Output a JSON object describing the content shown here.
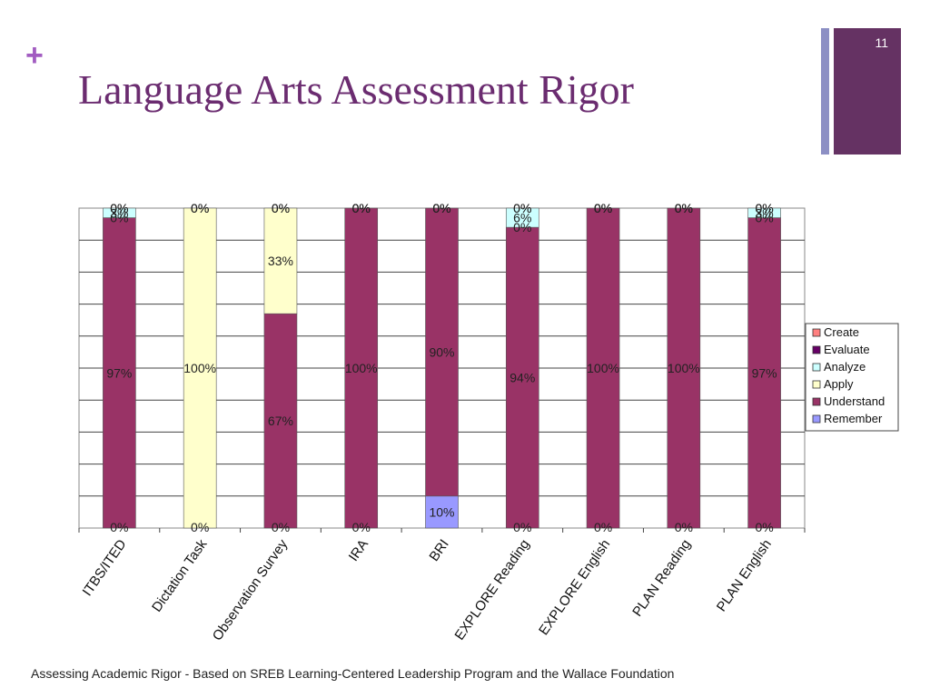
{
  "slide": {
    "plus_symbol": "+",
    "title": "Language Arts Assessment Rigor",
    "slide_number": "11",
    "footer": "Assessing Academic Rigor - Based on SREB Learning-Centered Leadership Program and the Wallace Foundation"
  },
  "colors": {
    "title": "#6b2c70",
    "plus": "#a25cc1",
    "accent_bar": "#8c8fc4",
    "number_box": "#653263"
  },
  "chart_data": {
    "type": "bar",
    "stacked": true,
    "title": "",
    "xlabel": "",
    "ylabel": "",
    "ylim": [
      0,
      100
    ],
    "grid": true,
    "legend_position": "right",
    "categories": [
      "ITBS/ITED",
      "Dictation Task",
      "Observation Survey",
      "IRA",
      "BRI",
      "EXPLORE Reading",
      "EXPLORE English",
      "PLAN Reading",
      "PLAN English"
    ],
    "series": [
      {
        "name": "Remember",
        "color": "#9999ff",
        "values": [
          0,
          0,
          0,
          0,
          10,
          0,
          0,
          0,
          0
        ],
        "labels": [
          "0%",
          "0%",
          "0%",
          "0%",
          "10%",
          "0%",
          "0%",
          "0%",
          "0%"
        ]
      },
      {
        "name": "Understand",
        "color": "#993366",
        "values": [
          97,
          0,
          67,
          100,
          90,
          94,
          100,
          100,
          97
        ],
        "labels": [
          "97%",
          "",
          "67%",
          "100%",
          "90%",
          "94%",
          "100%",
          "100%",
          "97%"
        ]
      },
      {
        "name": "Apply",
        "color": "#ffffcc",
        "values": [
          0,
          100,
          33,
          0,
          0,
          0,
          0,
          0,
          0
        ],
        "labels": [
          "0%",
          "100%",
          "33%",
          "0%",
          "0%",
          "0%",
          "0%",
          "0%",
          "0%"
        ]
      },
      {
        "name": "Analyze",
        "color": "#ccffff",
        "values": [
          3,
          0,
          0,
          0,
          0,
          6,
          0,
          0,
          3
        ],
        "labels": [
          "3%",
          "",
          "",
          "",
          "",
          "6%",
          "",
          "",
          "3%"
        ]
      },
      {
        "name": "Evaluate",
        "color": "#660066",
        "values": [
          0,
          0,
          0,
          0,
          0,
          0,
          0,
          0,
          0
        ],
        "labels": [
          "0%",
          "0%",
          "0%",
          "0%",
          "0%",
          "0%",
          "0%",
          "0%",
          "0%"
        ]
      },
      {
        "name": "Create",
        "color": "#ff8080",
        "values": [
          0,
          0,
          0,
          0,
          0,
          0,
          0,
          0,
          0
        ],
        "labels": [
          "0%",
          "0%",
          "0%",
          "0%",
          "0%",
          "0%",
          "0%",
          "0%",
          "0%"
        ]
      }
    ],
    "legend_order": [
      "Create",
      "Evaluate",
      "Analyze",
      "Apply",
      "Understand",
      "Remember"
    ]
  }
}
